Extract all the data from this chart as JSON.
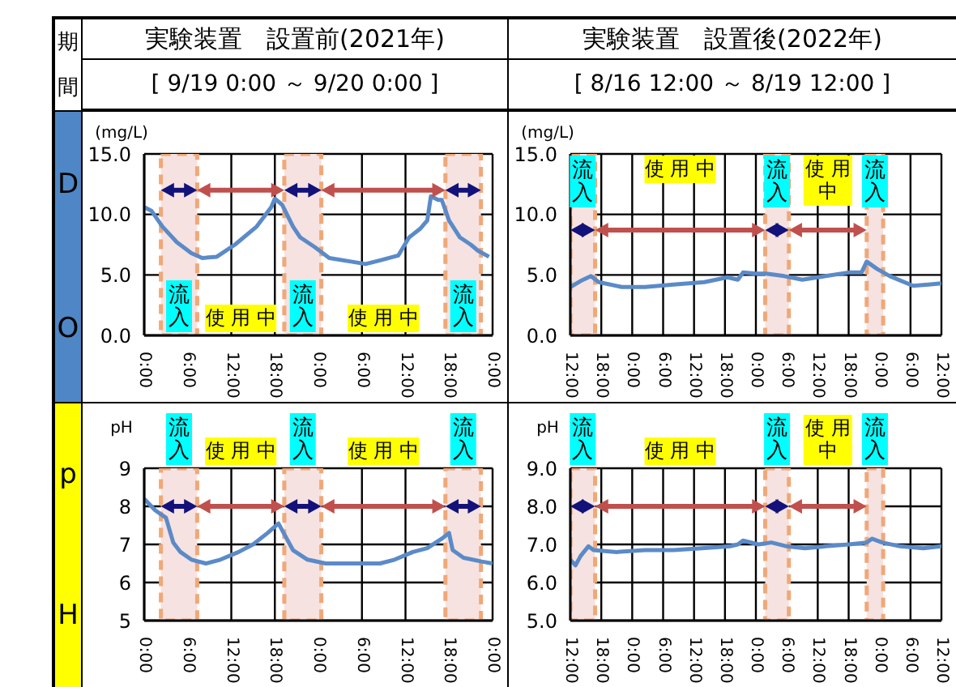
{
  "chart_data": [
    {
      "type": "line",
      "title": "実験装置　設置前(2021年)",
      "subtitle": "[ 9/19 0:00 ～ 9/20 0:00 ]",
      "ylabel": "(mg/L)",
      "annotations": [
        "期間",
        "D",
        "O",
        "使用中",
        "使用中"
      ],
      "x": [
        "2021-09-19T00:00",
        "2021-09-19T01:00",
        "2021-09-19T02:30",
        "2021-09-19T04:30",
        "2021-09-19T06:30",
        "2021-09-19T08:00",
        "2021-09-19T10:00",
        "2021-09-19T12:30",
        "2021-09-19T15:30",
        "2021-09-19T17:30",
        "2021-09-19T18:00",
        "2021-09-19T19:00",
        "2021-09-19T20:30",
        "2021-09-19T21:30",
        "2021-09-19T23:30",
        "2021-09-20T01:30",
        "2021-09-20T04:30",
        "2021-09-20T06:30",
        "2021-09-20T08:30",
        "2021-09-20T11:00",
        "2021-09-20T12:30",
        "2021-09-20T14:00",
        "2021-09-20T15:00",
        "2021-09-20T15:30",
        "2021-09-20T16:30",
        "2021-09-20T17:00",
        "2021-09-20T18:00",
        "2021-09-20T19:30",
        "2021-09-20T21:00",
        "2021-09-20T22:00",
        "2021-09-20T23:30"
      ],
      "series": [
        {
          "color": "#5b8ac8",
          "values": [
            10.6,
            10.3,
            9.0,
            7.7,
            6.8,
            6.4,
            6.5,
            7.5,
            9.0,
            10.6,
            11.3,
            10.8,
            9.0,
            8.1,
            7.3,
            6.4,
            6.1,
            5.9,
            6.2,
            6.6,
            8.1,
            8.8,
            9.5,
            11.5,
            11.2,
            11.2,
            9.5,
            8.1,
            7.5,
            7.0,
            6.5
          ]
        }
      ],
      "xlim": [
        "2021-09-19T00:00",
        "2021-09-21T00:00"
      ],
      "xticks": [
        {
          "value": "2021-09-19T00:00",
          "label": "0:00"
        },
        {
          "value": "2021-09-19T06:00",
          "label": "6:00"
        },
        {
          "value": "2021-09-19T12:00",
          "label": "12:00"
        },
        {
          "value": "2021-09-19T18:00",
          "label": "18:00"
        },
        {
          "value": "2021-09-20T00:00",
          "label": "0:00"
        },
        {
          "value": "2021-09-20T06:00",
          "label": "6:00"
        },
        {
          "value": "2021-09-20T12:00",
          "label": "12:00"
        },
        {
          "value": "2021-09-20T18:00",
          "label": "18:00"
        },
        {
          "value": "2021-09-21T00:00",
          "label": "0:00"
        }
      ],
      "ylim": [
        0,
        15
      ],
      "yticks": [
        {
          "value": 0,
          "label": "0.0"
        },
        {
          "value": 5,
          "label": "5.0"
        },
        {
          "value": 10,
          "label": "10.0"
        },
        {
          "value": 15,
          "label": "15.0"
        }
      ],
      "grid": true,
      "bands": [
        {
          "axis": "x",
          "from": "2021-09-19T02:18",
          "to": "2021-09-19T07:18",
          "label": "流入",
          "color": "#f6e2e0"
        },
        {
          "axis": "x",
          "from": "2021-09-19T19:18",
          "to": "2021-09-20T00:24",
          "label": "流入",
          "color": "#f6e2e0"
        },
        {
          "axis": "x",
          "from": "2021-09-20T17:30",
          "to": "2021-09-20T22:24",
          "label": "流入",
          "color": "#f6e2e0"
        }
      ]
    },
    {
      "type": "line",
      "title": "実験装置　設置後(2022年)",
      "subtitle": "[ 8/16 12:00 ～ 8/19 12:00 ]",
      "ylabel": "(mg/L)",
      "annotations": [
        "使用中",
        "使用中"
      ],
      "x": [
        "2022-08-16T12:00",
        "2022-08-16T14:00",
        "2022-08-16T16:00",
        "2022-08-16T17:30",
        "2022-08-16T22:00",
        "2022-08-17T02:30",
        "2022-08-17T08:00",
        "2022-08-17T14:00",
        "2022-08-17T18:30",
        "2022-08-17T20:30",
        "2022-08-17T21:30",
        "2022-08-18T00:00",
        "2022-08-18T02:00",
        "2022-08-18T05:30",
        "2022-08-18T09:00",
        "2022-08-18T13:30",
        "2022-08-18T18:00",
        "2022-08-18T20:30",
        "2022-08-18T21:30",
        "2022-08-18T23:30",
        "2022-08-19T02:00",
        "2022-08-19T06:30",
        "2022-08-19T09:30",
        "2022-08-19T12:00"
      ],
      "series": [
        {
          "color": "#5b8ac8",
          "values": [
            4.0,
            4.5,
            4.9,
            4.4,
            4.0,
            4.0,
            4.2,
            4.4,
            4.8,
            4.6,
            5.2,
            5.1,
            5.1,
            4.9,
            4.6,
            4.9,
            5.2,
            5.2,
            6.1,
            5.5,
            4.9,
            4.1,
            4.2,
            4.3
          ]
        }
      ],
      "xlim": [
        "2022-08-16T12:00",
        "2022-08-19T12:00"
      ],
      "xticks": [
        {
          "value": "2022-08-16T12:00",
          "label": "12:00"
        },
        {
          "value": "2022-08-16T18:00",
          "label": "18:00"
        },
        {
          "value": "2022-08-17T00:00",
          "label": "0:00"
        },
        {
          "value": "2022-08-17T06:00",
          "label": "6:00"
        },
        {
          "value": "2022-08-17T12:00",
          "label": "12:00"
        },
        {
          "value": "2022-08-17T18:00",
          "label": "18:00"
        },
        {
          "value": "2022-08-18T00:00",
          "label": "0:00"
        },
        {
          "value": "2022-08-18T06:00",
          "label": "6:00"
        },
        {
          "value": "2022-08-18T12:00",
          "label": "12:00"
        },
        {
          "value": "2022-08-18T18:00",
          "label": "18:00"
        },
        {
          "value": "2022-08-19T00:00",
          "label": "0:00"
        },
        {
          "value": "2022-08-19T06:00",
          "label": "6:00"
        },
        {
          "value": "2022-08-19T12:00",
          "label": "12:00"
        }
      ],
      "ylim": [
        0,
        15
      ],
      "yticks": [
        {
          "value": 0,
          "label": "0.0"
        },
        {
          "value": 5,
          "label": "5.0"
        },
        {
          "value": 10,
          "label": "10.0"
        },
        {
          "value": 15,
          "label": "15.0"
        }
      ],
      "grid": true,
      "bands": [
        {
          "axis": "x",
          "from": "2022-08-16T12:00",
          "to": "2022-08-16T16:48",
          "label": "流入",
          "color": "#f6e2e0"
        },
        {
          "axis": "x",
          "from": "2022-08-18T01:48",
          "to": "2022-08-18T06:24",
          "label": "流入",
          "color": "#f6e2e0"
        },
        {
          "axis": "x",
          "from": "2022-08-18T21:30",
          "to": "2022-08-19T00:42",
          "label": "流入",
          "color": "#f6e2e0"
        }
      ]
    },
    {
      "type": "line",
      "ylabel": "pH",
      "annotations": [
        "p",
        "H",
        "使用中",
        "使用中"
      ],
      "x": [
        "2021-09-19T00:00",
        "2021-09-19T01:30",
        "2021-09-19T03:00",
        "2021-09-19T04:00",
        "2021-09-19T05:00",
        "2021-09-19T06:30",
        "2021-09-19T08:30",
        "2021-09-19T10:30",
        "2021-09-19T13:00",
        "2021-09-19T15:00",
        "2021-09-19T17:00",
        "2021-09-19T18:30",
        "2021-09-19T19:30",
        "2021-09-19T20:30",
        "2021-09-19T22:30",
        "2021-09-20T01:00",
        "2021-09-20T05:00",
        "2021-09-20T08:30",
        "2021-09-20T10:30",
        "2021-09-20T13:00",
        "2021-09-20T15:00",
        "2021-09-20T17:00",
        "2021-09-20T18:00",
        "2021-09-20T18:30",
        "2021-09-20T20:00",
        "2021-09-20T22:30",
        "2021-09-21T00:00"
      ],
      "series": [
        {
          "color": "#5b8ac8",
          "values": [
            8.2,
            7.9,
            7.7,
            7.05,
            6.8,
            6.6,
            6.5,
            6.6,
            6.8,
            7.0,
            7.3,
            7.55,
            7.2,
            6.85,
            6.6,
            6.5,
            6.5,
            6.5,
            6.6,
            6.8,
            6.9,
            7.15,
            7.3,
            6.85,
            6.65,
            6.55,
            6.5
          ]
        }
      ],
      "xlim": [
        "2021-09-19T00:00",
        "2021-09-21T00:00"
      ],
      "xticks": [
        {
          "value": "2021-09-19T00:00",
          "label": "0:00"
        },
        {
          "value": "2021-09-19T06:00",
          "label": "6:00"
        },
        {
          "value": "2021-09-19T12:00",
          "label": "12:00"
        },
        {
          "value": "2021-09-19T18:00",
          "label": "18:00"
        },
        {
          "value": "2021-09-20T00:00",
          "label": "0:00"
        },
        {
          "value": "2021-09-20T06:00",
          "label": "6:00"
        },
        {
          "value": "2021-09-20T12:00",
          "label": "12:00"
        },
        {
          "value": "2021-09-20T18:00",
          "label": "18:00"
        },
        {
          "value": "2021-09-21T00:00",
          "label": "0:00"
        }
      ],
      "ylim": [
        5,
        9
      ],
      "yticks": [
        5,
        6,
        7,
        8,
        9
      ],
      "grid": true,
      "bands": [
        {
          "axis": "x",
          "from": "2021-09-19T02:18",
          "to": "2021-09-19T07:18",
          "label": "流入",
          "color": "#f6e2e0"
        },
        {
          "axis": "x",
          "from": "2021-09-19T19:18",
          "to": "2021-09-20T00:24",
          "label": "流入",
          "color": "#f6e2e0"
        },
        {
          "axis": "x",
          "from": "2021-09-20T17:30",
          "to": "2021-09-20T22:24",
          "label": "流入",
          "color": "#f6e2e0"
        }
      ]
    },
    {
      "type": "line",
      "ylabel": "pH",
      "annotations": [
        "使用中",
        "使用中"
      ],
      "x": [
        "2022-08-16T12:00",
        "2022-08-16T13:00",
        "2022-08-16T14:00",
        "2022-08-16T15:30",
        "2022-08-16T16:30",
        "2022-08-16T21:00",
        "2022-08-17T02:30",
        "2022-08-17T08:00",
        "2022-08-17T13:30",
        "2022-08-17T19:00",
        "2022-08-17T20:30",
        "2022-08-17T21:30",
        "2022-08-18T00:30",
        "2022-08-18T03:00",
        "2022-08-18T06:00",
        "2022-08-18T09:30",
        "2022-08-18T13:30",
        "2022-08-18T18:00",
        "2022-08-18T21:30",
        "2022-08-18T22:30",
        "2022-08-19T00:30",
        "2022-08-19T04:00",
        "2022-08-19T08:30",
        "2022-08-19T12:00"
      ],
      "series": [
        {
          "color": "#5b8ac8",
          "values": [
            6.6,
            6.45,
            6.7,
            6.95,
            6.85,
            6.8,
            6.85,
            6.85,
            6.9,
            6.95,
            7.0,
            7.1,
            7.0,
            7.05,
            6.95,
            6.9,
            6.95,
            7.0,
            7.05,
            7.15,
            7.05,
            6.95,
            6.9,
            6.95
          ]
        }
      ],
      "xlim": [
        "2022-08-16T12:00",
        "2022-08-19T12:00"
      ],
      "xticks": [
        {
          "value": "2022-08-16T12:00",
          "label": "12:00"
        },
        {
          "value": "2022-08-16T18:00",
          "label": "18:00"
        },
        {
          "value": "2022-08-17T00:00",
          "label": "0:00"
        },
        {
          "value": "2022-08-17T06:00",
          "label": "6:00"
        },
        {
          "value": "2022-08-17T12:00",
          "label": "12:00"
        },
        {
          "value": "2022-08-17T18:00",
          "label": "18:00"
        },
        {
          "value": "2022-08-18T00:00",
          "label": "0:00"
        },
        {
          "value": "2022-08-18T06:00",
          "label": "6:00"
        },
        {
          "value": "2022-08-18T12:00",
          "label": "12:00"
        },
        {
          "value": "2022-08-18T18:00",
          "label": "18:00"
        },
        {
          "value": "2022-08-19T00:00",
          "label": "0:00"
        },
        {
          "value": "2022-08-19T06:00",
          "label": "6:00"
        },
        {
          "value": "2022-08-19T12:00",
          "label": "12:00"
        }
      ],
      "ylim": [
        5,
        9
      ],
      "yticks": [
        {
          "value": 5,
          "label": "5.0"
        },
        {
          "value": 6,
          "label": "6.0"
        },
        {
          "value": 7,
          "label": "7.0"
        },
        {
          "value": 8,
          "label": "8.0"
        },
        {
          "value": 9,
          "label": "9.0"
        }
      ],
      "grid": true,
      "bands": [
        {
          "axis": "x",
          "from": "2022-08-16T12:00",
          "to": "2022-08-16T16:48",
          "label": "流入",
          "color": "#f6e2e0"
        },
        {
          "axis": "x",
          "from": "2022-08-18T01:48",
          "to": "2022-08-18T06:24",
          "label": "流入",
          "color": "#f6e2e0"
        },
        {
          "axis": "x",
          "from": "2022-08-18T21:30",
          "to": "2022-08-19T00:42",
          "label": "流入",
          "color": "#f6e2e0"
        }
      ]
    }
  ]
}
